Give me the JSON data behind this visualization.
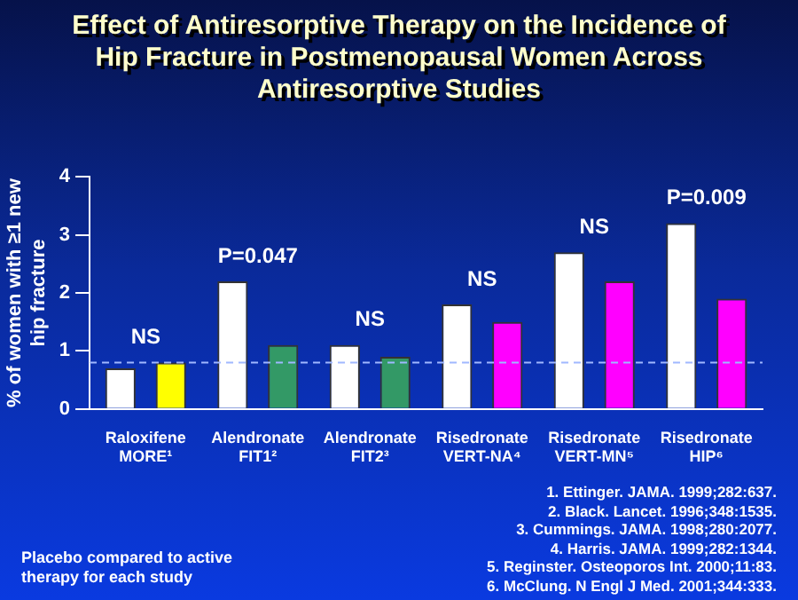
{
  "chart_data": {
    "type": "bar",
    "title": "Effect of Antiresorptive Therapy on the Incidence of Hip Fracture in Postmenopausal Women Across Antiresorptive Studies",
    "ylabel": "% of women with ≥1 new hip fracture",
    "categories": [
      "Raloxifene\nMORE¹",
      "Alendronate\nFIT1²",
      "Alendronate\nFIT2³",
      "Risedronate\nVERT-NA⁴",
      "Risedronate\nVERT-MN⁵",
      "Risedronate\nHIP⁶"
    ],
    "series": [
      {
        "color": "#ffffff",
        "values": [
          0.7,
          2.2,
          1.1,
          1.8,
          2.7,
          3.2
        ]
      },
      {
        "colors": [
          "#ffff00",
          "#339966",
          "#339966",
          "#ff00ff",
          "#ff00ff",
          "#ff00ff"
        ],
        "values": [
          0.8,
          1.1,
          0.9,
          1.5,
          2.2,
          1.9
        ]
      }
    ],
    "ylim": [
      0,
      4
    ],
    "yticks": [
      0,
      1,
      2,
      3,
      4
    ],
    "grid": false,
    "legend": false,
    "ref_lines": [
      {
        "axis": "y",
        "value": 0.8,
        "color": "#a0b8ff",
        "line_style": "dashed"
      }
    ],
    "annotations": [
      "Placebo compared to active therapy for each study",
      "1. Ettinger. JAMA. 1999;282:637.",
      "2. Black. Lancet. 1996;348:1535.",
      "3. Cummings. JAMA. 1998;280:2077.",
      "4. Harris. JAMA. 1999;282:1344.",
      "5. Reginster. Osteoporos Int. 2000;11:83.",
      "6. McClung. N Engl J Med. 2001;344:333.",
      "NS",
      "P=0.047",
      "NS",
      "NS",
      "NS",
      "P=0.009"
    ]
  }
}
